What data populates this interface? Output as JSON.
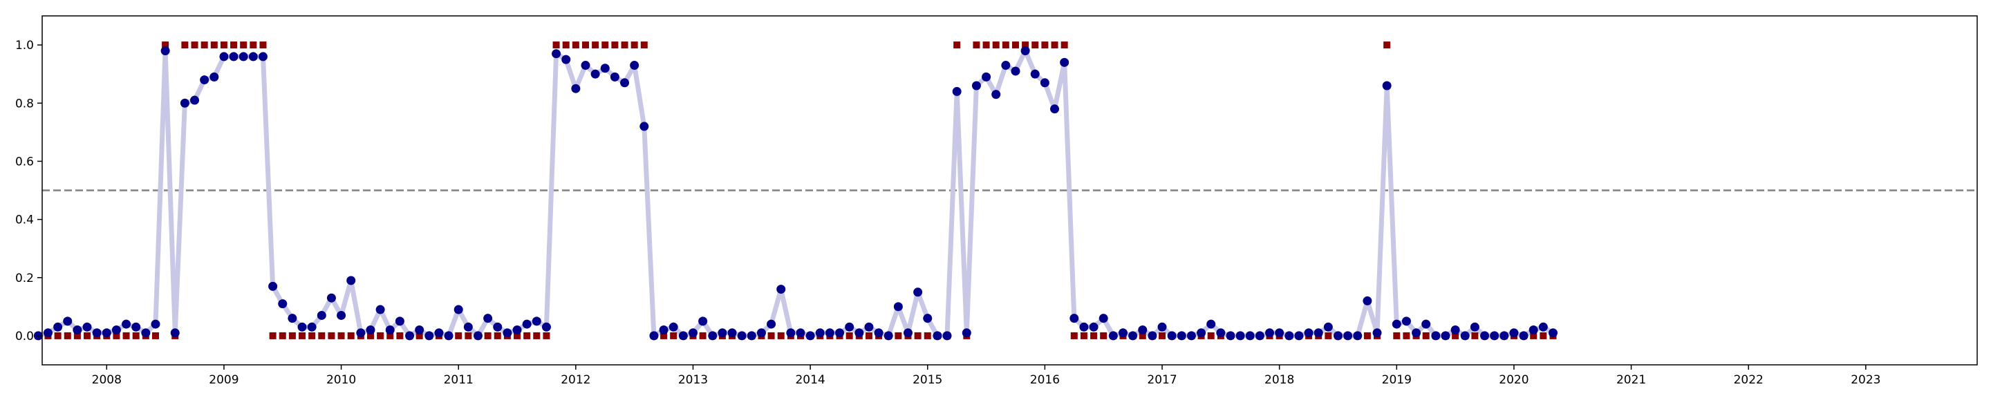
{
  "chart_data": {
    "type": "line",
    "title": "",
    "xlabel": "",
    "ylabel": "",
    "xlim": [
      2007.45,
      2023.95
    ],
    "ylim": [
      -0.1,
      1.1
    ],
    "threshold": 0.5,
    "grid": false,
    "x_ticks": [
      {
        "value": 2008,
        "label": "2008"
      },
      {
        "value": 2009,
        "label": "2009"
      },
      {
        "value": 2010,
        "label": "2010"
      },
      {
        "value": 2011,
        "label": "2011"
      },
      {
        "value": 2012,
        "label": "2012"
      },
      {
        "value": 2013,
        "label": "2013"
      },
      {
        "value": 2014,
        "label": "2014"
      },
      {
        "value": 2015,
        "label": "2015"
      },
      {
        "value": 2016,
        "label": "2016"
      },
      {
        "value": 2017,
        "label": "2017"
      },
      {
        "value": 2018,
        "label": "2018"
      },
      {
        "value": 2019,
        "label": "2019"
      },
      {
        "value": 2020,
        "label": "2020"
      },
      {
        "value": 2021,
        "label": "2021"
      },
      {
        "value": 2022,
        "label": "2022"
      },
      {
        "value": 2023,
        "label": "2023"
      }
    ],
    "y_ticks": [
      {
        "value": 0.0,
        "label": "0.0"
      },
      {
        "value": 0.2,
        "label": "0.2"
      },
      {
        "value": 0.4,
        "label": "0.4"
      },
      {
        "value": 0.6,
        "label": "0.6"
      },
      {
        "value": 0.8,
        "label": "0.8"
      },
      {
        "value": 1.0,
        "label": "1.0"
      }
    ],
    "start": [
      2007,
      6
    ],
    "colors": {
      "line": "#c8c8e6",
      "probability": "#00008b",
      "label": "#8b0000",
      "threshold": "#808080"
    },
    "series": [
      {
        "values": [
          0.0,
          0.01,
          0.03,
          0.05,
          0.02,
          0.03,
          0.01,
          0.01,
          0.02,
          0.04,
          0.03,
          0.01,
          0.04,
          0.98,
          0.01,
          0.8,
          0.81,
          0.88,
          0.89,
          0.96,
          0.96,
          0.96,
          0.96,
          0.96,
          0.17,
          0.11,
          0.06,
          0.03,
          0.03,
          0.07,
          0.13,
          0.07,
          0.19,
          0.01,
          0.02,
          0.09,
          0.02,
          0.05,
          0.0,
          0.02,
          0.0,
          0.01,
          0.0,
          0.09,
          0.03,
          0.0,
          0.06,
          0.03,
          0.01,
          0.02,
          0.04,
          0.05,
          0.03,
          0.97,
          0.95,
          0.85,
          0.93,
          0.9,
          0.92,
          0.89,
          0.87,
          0.93,
          0.72,
          0.0,
          0.02,
          0.03,
          0.0,
          0.01,
          0.05,
          0.0,
          0.01,
          0.01,
          0.0,
          0.0,
          0.01,
          0.04,
          0.16,
          0.01,
          0.01,
          0.0,
          0.01,
          0.01,
          0.01,
          0.03,
          0.01,
          0.03,
          0.01,
          0.0,
          0.1,
          0.01,
          0.15,
          0.06,
          0.0,
          0.0,
          0.84,
          0.01,
          0.86,
          0.89,
          0.83,
          0.93,
          0.91,
          0.98,
          0.9,
          0.87,
          0.78,
          0.94,
          0.06,
          0.03,
          0.03,
          0.06,
          0.0,
          0.01,
          0.0,
          0.02,
          0.0,
          0.03,
          0.0,
          0.0,
          0.0,
          0.01,
          0.04,
          0.01,
          0.0,
          0.0,
          0.0,
          0.0,
          0.01,
          0.01,
          0.0,
          0.0,
          0.01,
          0.01,
          0.03,
          0.0,
          0.0,
          0.0,
          0.12,
          0.01,
          0.86,
          0.04,
          0.05,
          0.01,
          0.04,
          0.0,
          0.0,
          0.02,
          0.0,
          0.03,
          0.0,
          0.0,
          0.0,
          0.01,
          0.0,
          0.02,
          0.03,
          0.01
        ]
      },
      {
        "values": [
          0,
          0,
          0,
          0,
          0,
          0,
          0,
          0,
          0,
          0,
          0,
          0,
          0,
          1,
          0,
          1,
          1,
          1,
          1,
          1,
          1,
          1,
          1,
          1,
          0,
          0,
          0,
          0,
          0,
          0,
          0,
          0,
          0,
          0,
          0,
          0,
          0,
          0,
          0,
          0,
          0,
          0,
          0,
          0,
          0,
          0,
          0,
          0,
          0,
          0,
          0,
          0,
          0,
          1,
          1,
          1,
          1,
          1,
          1,
          1,
          1,
          1,
          1,
          0,
          0,
          0,
          0,
          0,
          0,
          0,
          0,
          0,
          0,
          0,
          0,
          0,
          0,
          0,
          0,
          0,
          0,
          0,
          0,
          0,
          0,
          0,
          0,
          0,
          0,
          0,
          0,
          0,
          0,
          0,
          1,
          0,
          1,
          1,
          1,
          1,
          1,
          1,
          1,
          1,
          1,
          1,
          0,
          0,
          0,
          0,
          0,
          0,
          0,
          0,
          0,
          0,
          0,
          0,
          0,
          0,
          0,
          0,
          0,
          0,
          0,
          0,
          0,
          0,
          0,
          0,
          0,
          0,
          0,
          0,
          0,
          0,
          0,
          0,
          1,
          0,
          0,
          0,
          0,
          0,
          0,
          0,
          0,
          0,
          0,
          0,
          0,
          0,
          0,
          0,
          0,
          0
        ]
      }
    ]
  }
}
